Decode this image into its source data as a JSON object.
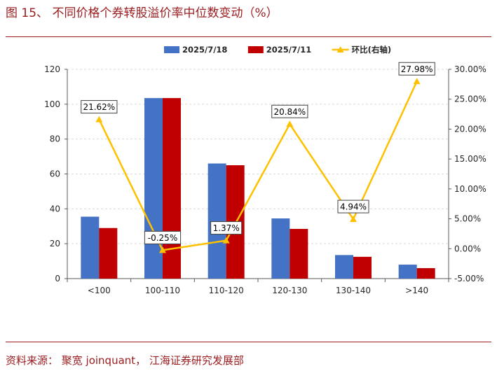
{
  "figure": {
    "title": "图 15、 不同价格个券转股溢价率中位数变动（%）",
    "source": "资料来源： 聚宽 joinquant， 江海证券研究发展部"
  },
  "chart_data": {
    "type": "bar",
    "categories": [
      "<100",
      "100-110",
      "110-120",
      "120-130",
      "130-140",
      ">140"
    ],
    "series": [
      {
        "name": "2025/7/18",
        "kind": "bar",
        "axis": "left",
        "color": "#4472c4",
        "values": [
          35.5,
          103.5,
          66.0,
          34.5,
          13.5,
          8.0
        ]
      },
      {
        "name": "2025/7/11",
        "kind": "bar",
        "axis": "left",
        "color": "#c00000",
        "values": [
          29.0,
          103.5,
          65.0,
          28.5,
          12.5,
          6.0
        ]
      },
      {
        "name": "环比(右轴)",
        "kind": "line",
        "axis": "right",
        "color": "#ffc000",
        "values": [
          21.62,
          -0.25,
          1.37,
          20.84,
          4.94,
          27.98
        ],
        "labels": [
          "21.62%",
          "-0.25%",
          "1.37%",
          "20.84%",
          "4.94%",
          "27.98%"
        ]
      }
    ],
    "y_left": {
      "min": 0,
      "max": 120,
      "step": 20,
      "ticks": [
        "0",
        "20",
        "40",
        "60",
        "80",
        "100",
        "120"
      ]
    },
    "y_right": {
      "min": -5,
      "max": 30,
      "step": 5,
      "ticks": [
        "-5.00%",
        "0.00%",
        "5.00%",
        "10.00%",
        "15.00%",
        "20.00%",
        "25.00%",
        "30.00%"
      ]
    },
    "grid": true,
    "legend": "top-center"
  }
}
